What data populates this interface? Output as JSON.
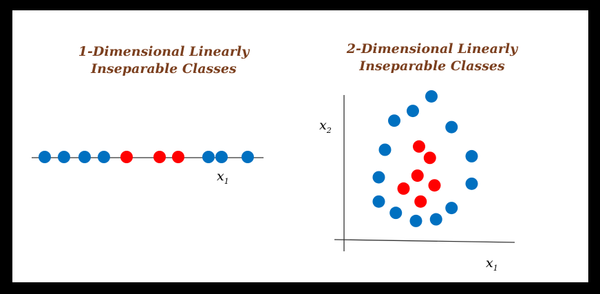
{
  "left_panel": {
    "title_line1": "1-Dimensional Linearly",
    "title_line2": "Inseparable Classes",
    "axis_x": {
      "base": "x",
      "sub": "1"
    },
    "points": [
      {
        "x": 1,
        "cls": "blue"
      },
      {
        "x": 2,
        "cls": "blue"
      },
      {
        "x": 3,
        "cls": "blue"
      },
      {
        "x": 4,
        "cls": "blue"
      },
      {
        "x": 5,
        "cls": "red"
      },
      {
        "x": 6,
        "cls": "red"
      },
      {
        "x": 7,
        "cls": "red"
      },
      {
        "x": 8,
        "cls": "blue"
      },
      {
        "x": 9,
        "cls": "blue"
      },
      {
        "x": 10,
        "cls": "blue"
      }
    ]
  },
  "right_panel": {
    "title_line1": "2-Dimensional Linearly",
    "title_line2": "Inseparable Classes",
    "axis_x": {
      "base": "x",
      "sub": "1"
    },
    "axis_y": {
      "base": "x",
      "sub": "2"
    },
    "points": [
      {
        "x": 5.2,
        "y": 8.3,
        "cls": "blue"
      },
      {
        "x": 4.0,
        "y": 7.4,
        "cls": "blue"
      },
      {
        "x": 2.8,
        "y": 6.8,
        "cls": "blue"
      },
      {
        "x": 6.5,
        "y": 6.4,
        "cls": "blue"
      },
      {
        "x": 2.2,
        "y": 5.0,
        "cls": "blue"
      },
      {
        "x": 7.8,
        "y": 4.6,
        "cls": "blue"
      },
      {
        "x": 1.8,
        "y": 3.3,
        "cls": "blue"
      },
      {
        "x": 7.8,
        "y": 2.9,
        "cls": "blue"
      },
      {
        "x": 1.8,
        "y": 1.8,
        "cls": "blue"
      },
      {
        "x": 6.5,
        "y": 1.4,
        "cls": "blue"
      },
      {
        "x": 2.9,
        "y": 1.1,
        "cls": "blue"
      },
      {
        "x": 4.2,
        "y": 0.6,
        "cls": "blue"
      },
      {
        "x": 5.5,
        "y": 0.7,
        "cls": "blue"
      },
      {
        "x": 4.4,
        "y": 5.2,
        "cls": "red"
      },
      {
        "x": 5.1,
        "y": 4.5,
        "cls": "red"
      },
      {
        "x": 4.3,
        "y": 3.4,
        "cls": "red"
      },
      {
        "x": 3.4,
        "y": 2.6,
        "cls": "red"
      },
      {
        "x": 5.4,
        "y": 2.8,
        "cls": "red"
      },
      {
        "x": 4.5,
        "y": 1.8,
        "cls": "red"
      }
    ]
  },
  "colors": {
    "blue": "#0070C0",
    "red": "#FF0000",
    "title": "#7B3F1E"
  }
}
